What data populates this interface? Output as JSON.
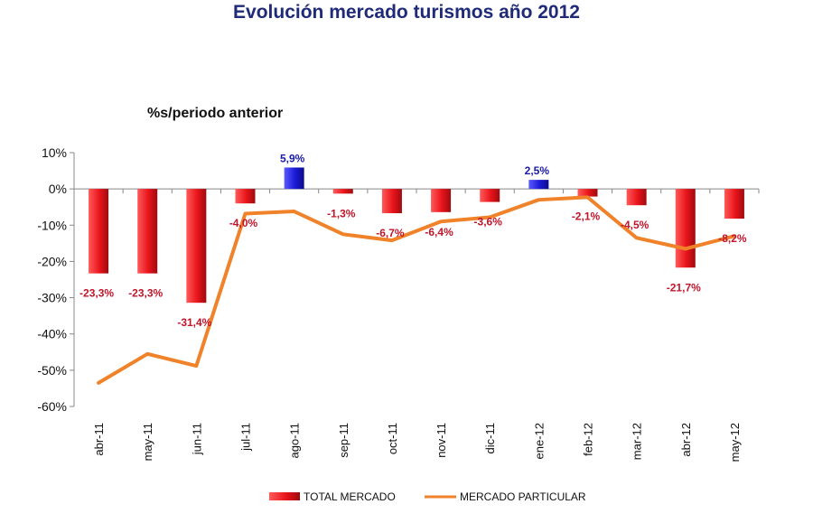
{
  "chart_data": {
    "type": "bar",
    "title": "Evolución mercado turismos año 2012",
    "subtitle": "%s/periodo anterior",
    "categories": [
      "abr-11",
      "may-11",
      "jun-11",
      "jul-11",
      "ago-11",
      "sep-11",
      "oct-11",
      "nov-11",
      "dic-11",
      "ene-12",
      "feb-12",
      "mar-12",
      "abr-12",
      "may-12"
    ],
    "ylim": [
      -60,
      10
    ],
    "yticks": [
      "10%",
      "0%",
      "-10%",
      "-20%",
      "-30%",
      "-40%",
      "-50%",
      "-60%"
    ],
    "grid": false,
    "legend_position": "bottom",
    "series": [
      {
        "name": "TOTAL MERCADO",
        "type": "bar",
        "values": [
          -23.3,
          -23.3,
          -31.4,
          -4.0,
          5.9,
          -1.3,
          -6.7,
          -6.4,
          -3.6,
          2.5,
          -2.1,
          -4.5,
          -21.7,
          -8.2
        ],
        "labels": [
          "-23,3%",
          "-23,3%",
          "-31,4%",
          "-4,0%",
          "5,9%",
          "-1,3%",
          "-6,7%",
          "-6,4%",
          "-3,6%",
          "2,5%",
          "-2,1%",
          "-4,5%",
          "-21,7%",
          "-8,2%"
        ],
        "color_negative": "#e8141a",
        "color_positive": "#1a1ad6",
        "label_color_negative": "#c0152a",
        "label_color_positive": "#1a1aa8"
      },
      {
        "name": "MERCADO PARTICULAR",
        "type": "line",
        "values": [
          -53.5,
          -45.5,
          -48.8,
          -6.8,
          -6.2,
          -12.5,
          -14.2,
          -9.0,
          -7.8,
          -3.0,
          -2.3,
          -13.5,
          -16.5,
          -13.0
        ],
        "color": "#f0822a"
      }
    ]
  }
}
